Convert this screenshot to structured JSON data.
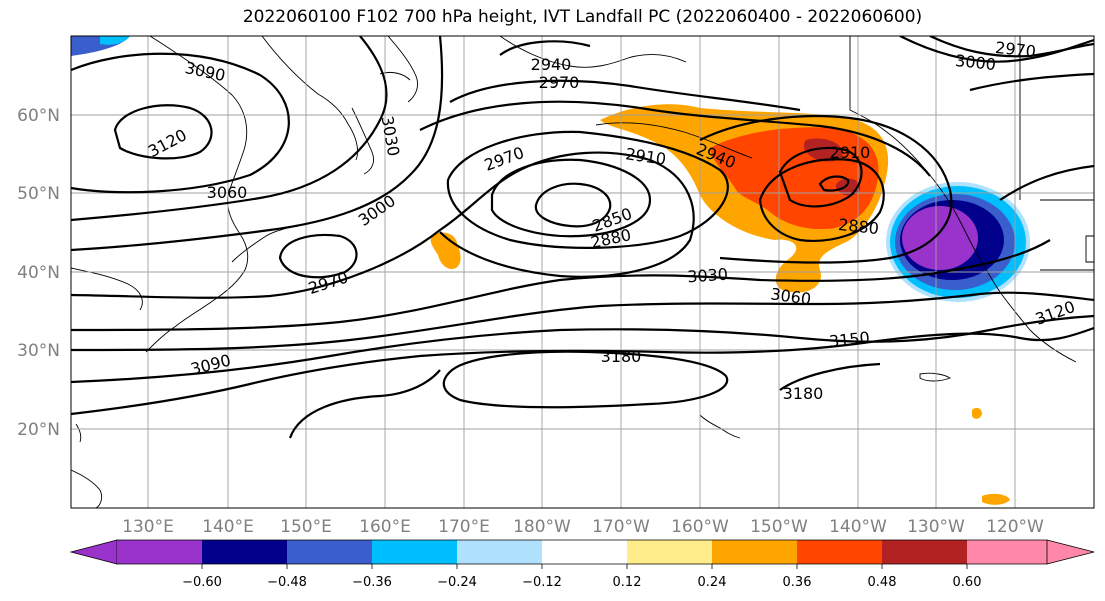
{
  "title": "2022060100 F102 700 hPa height, IVT Landfall PC (2022060400 - 2022060600)",
  "lat_labels": [
    "60°N",
    "50°N",
    "40°N",
    "30°N",
    "20°N"
  ],
  "lon_labels": [
    "130°E",
    "140°E",
    "150°E",
    "160°E",
    "170°E",
    "180°W",
    "170°W",
    "160°W",
    "150°W",
    "140°W",
    "130°W",
    "120°W"
  ],
  "contour_labels": [
    "3090",
    "3120",
    "3060",
    "3030",
    "3000",
    "2970",
    "2940",
    "2970",
    "2910",
    "2970",
    "2850",
    "2880",
    "2940",
    "2910",
    "2880",
    "3030",
    "3060",
    "2970",
    "3000",
    "3120",
    "3150",
    "3180",
    "3180",
    "3090"
  ],
  "colorbar": {
    "ticks": [
      "−0.60",
      "−0.48",
      "−0.36",
      "−0.24",
      "−0.12",
      "0.12",
      "0.24",
      "0.36",
      "0.48",
      "0.60"
    ],
    "colors": [
      "#9933cc",
      "#00008b",
      "#3a5fcd",
      "#00bfff",
      "#b0e2ff",
      "#ffffff",
      "#ffec8b",
      "#ffa500",
      "#ff4500",
      "#b22222",
      "#ff88aa"
    ]
  },
  "colors": {
    "orange": "#ffa500",
    "red_orange": "#ff4500",
    "dark_red": "#b22222",
    "yellow": "#ffec8b",
    "purple": "#9933cc",
    "navy": "#00008b",
    "blue": "#3a5fcd",
    "cyan": "#00bfff",
    "light_blue": "#b0e2ff",
    "grid": "#a0a0a0"
  }
}
